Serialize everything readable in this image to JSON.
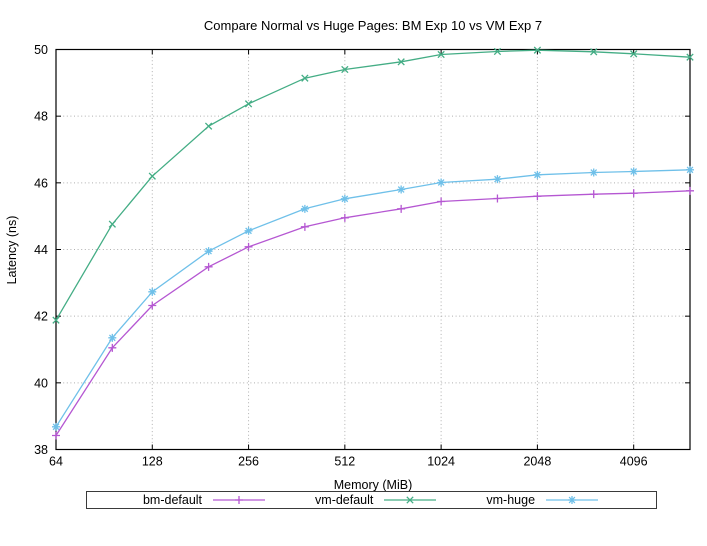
{
  "figure": {
    "background": "#ffffff",
    "border_color": "#000000",
    "grid_color": "#b0b0b0"
  },
  "chart_data": {
    "type": "line",
    "title": "Compare Normal vs Huge Pages: BM Exp 10 vs VM Exp 7",
    "xlabel": "Memory (MiB)",
    "ylabel": "Latency (ns)",
    "x_scale": "log2",
    "xlim": [
      64,
      6144
    ],
    "ylim": [
      38,
      50
    ],
    "xticks": [
      64,
      128,
      256,
      512,
      1024,
      2048,
      4096
    ],
    "yticks": [
      38,
      40,
      42,
      44,
      46,
      48,
      50
    ],
    "grid": "dotted",
    "legend_position": "bottom-outside-boxed",
    "x": [
      64,
      96,
      128,
      192,
      256,
      384,
      512,
      768,
      1024,
      1536,
      2048,
      3072,
      4096,
      6144
    ],
    "series": [
      {
        "name": "bm-default",
        "color": "#b557d2",
        "marker": "plus",
        "values": [
          38.42,
          41.05,
          42.32,
          43.48,
          44.08,
          44.68,
          44.95,
          45.22,
          45.44,
          45.53,
          45.6,
          45.66,
          45.69,
          45.76
        ]
      },
      {
        "name": "vm-default",
        "color": "#44ad85",
        "marker": "cross",
        "values": [
          41.88,
          44.76,
          46.2,
          47.7,
          48.37,
          49.14,
          49.4,
          49.63,
          49.85,
          49.94,
          49.98,
          49.93,
          49.87,
          49.77
        ]
      },
      {
        "name": "vm-huge",
        "color": "#6fc0e9",
        "marker": "asterisk",
        "values": [
          38.68,
          41.35,
          42.73,
          43.95,
          44.56,
          45.22,
          45.52,
          45.8,
          46.01,
          46.11,
          46.24,
          46.31,
          46.34,
          46.39
        ]
      }
    ]
  }
}
